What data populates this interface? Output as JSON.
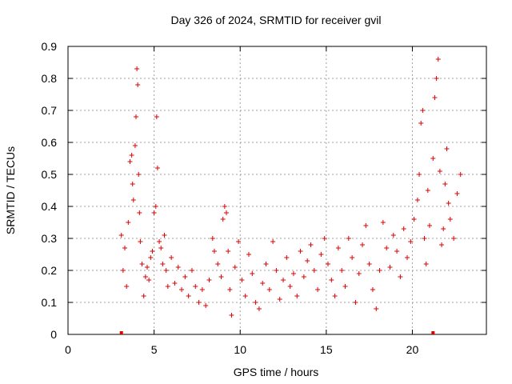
{
  "chart_data": {
    "type": "scatter",
    "title": "Day 326 of 2024, SRMTID for receiver gvil",
    "xlabel": "GPS time / hours",
    "ylabel": "SRMTID / TECUs",
    "xlim": [
      0,
      24.3
    ],
    "ylim": [
      0,
      0.9
    ],
    "xticks": [
      0,
      5,
      10,
      15,
      20
    ],
    "yticks": [
      0,
      0.1,
      0.2,
      0.3,
      0.4,
      0.5,
      0.6,
      0.7,
      0.8,
      0.9
    ],
    "grid": true,
    "marker": "+",
    "color": "#e00000",
    "series": [
      {
        "name": "SRMTID",
        "points": [
          [
            3.1,
            0.31
          ],
          [
            3.2,
            0.2
          ],
          [
            3.3,
            0.27
          ],
          [
            3.4,
            0.15
          ],
          [
            3.5,
            0.35
          ],
          [
            3.6,
            0.54
          ],
          [
            3.7,
            0.56
          ],
          [
            3.75,
            0.47
          ],
          [
            3.8,
            0.42
          ],
          [
            3.9,
            0.59
          ],
          [
            3.95,
            0.68
          ],
          [
            4.0,
            0.83
          ],
          [
            4.05,
            0.78
          ],
          [
            4.1,
            0.5
          ],
          [
            4.15,
            0.38
          ],
          [
            4.2,
            0.29
          ],
          [
            4.3,
            0.22
          ],
          [
            4.4,
            0.12
          ],
          [
            4.5,
            0.18
          ],
          [
            4.6,
            0.21
          ],
          [
            4.7,
            0.17
          ],
          [
            4.8,
            0.24
          ],
          [
            4.9,
            0.26
          ],
          [
            5.0,
            0.38
          ],
          [
            5.1,
            0.4
          ],
          [
            5.15,
            0.68
          ],
          [
            5.2,
            0.52
          ],
          [
            5.3,
            0.29
          ],
          [
            5.4,
            0.27
          ],
          [
            5.5,
            0.22
          ],
          [
            5.6,
            0.31
          ],
          [
            5.7,
            0.2
          ],
          [
            5.8,
            0.15
          ],
          [
            6.0,
            0.24
          ],
          [
            6.2,
            0.16
          ],
          [
            6.4,
            0.21
          ],
          [
            6.6,
            0.14
          ],
          [
            6.8,
            0.18
          ],
          [
            7.0,
            0.12
          ],
          [
            7.2,
            0.2
          ],
          [
            7.4,
            0.15
          ],
          [
            7.6,
            0.1
          ],
          [
            7.8,
            0.14
          ],
          [
            8.0,
            0.09
          ],
          [
            8.2,
            0.17
          ],
          [
            8.4,
            0.3
          ],
          [
            8.5,
            0.26
          ],
          [
            8.7,
            0.22
          ],
          [
            8.9,
            0.18
          ],
          [
            9.0,
            0.36
          ],
          [
            9.1,
            0.4
          ],
          [
            9.2,
            0.38
          ],
          [
            9.3,
            0.26
          ],
          [
            9.4,
            0.14
          ],
          [
            9.5,
            0.06
          ],
          [
            9.7,
            0.21
          ],
          [
            9.9,
            0.29
          ],
          [
            10.1,
            0.17
          ],
          [
            10.3,
            0.12
          ],
          [
            10.5,
            0.25
          ],
          [
            10.7,
            0.19
          ],
          [
            10.9,
            0.1
          ],
          [
            11.1,
            0.08
          ],
          [
            11.3,
            0.16
          ],
          [
            11.5,
            0.22
          ],
          [
            11.7,
            0.14
          ],
          [
            11.9,
            0.29
          ],
          [
            12.1,
            0.2
          ],
          [
            12.3,
            0.11
          ],
          [
            12.5,
            0.17
          ],
          [
            12.7,
            0.24
          ],
          [
            12.9,
            0.15
          ],
          [
            13.1,
            0.19
          ],
          [
            13.3,
            0.12
          ],
          [
            13.5,
            0.26
          ],
          [
            13.7,
            0.18
          ],
          [
            13.9,
            0.23
          ],
          [
            14.1,
            0.28
          ],
          [
            14.3,
            0.2
          ],
          [
            14.5,
            0.14
          ],
          [
            14.7,
            0.25
          ],
          [
            14.9,
            0.3
          ],
          [
            15.1,
            0.22
          ],
          [
            15.3,
            0.17
          ],
          [
            15.5,
            0.12
          ],
          [
            15.7,
            0.27
          ],
          [
            15.9,
            0.2
          ],
          [
            16.1,
            0.15
          ],
          [
            16.3,
            0.3
          ],
          [
            16.5,
            0.24
          ],
          [
            16.7,
            0.1
          ],
          [
            16.9,
            0.19
          ],
          [
            17.1,
            0.28
          ],
          [
            17.3,
            0.34
          ],
          [
            17.5,
            0.22
          ],
          [
            17.7,
            0.14
          ],
          [
            17.9,
            0.08
          ],
          [
            18.1,
            0.2
          ],
          [
            18.3,
            0.35
          ],
          [
            18.5,
            0.27
          ],
          [
            18.7,
            0.21
          ],
          [
            18.9,
            0.31
          ],
          [
            19.1,
            0.26
          ],
          [
            19.3,
            0.18
          ],
          [
            19.5,
            0.33
          ],
          [
            19.7,
            0.24
          ],
          [
            19.9,
            0.29
          ],
          [
            20.1,
            0.36
          ],
          [
            20.3,
            0.42
          ],
          [
            20.4,
            0.5
          ],
          [
            20.5,
            0.66
          ],
          [
            20.6,
            0.7
          ],
          [
            20.7,
            0.3
          ],
          [
            20.8,
            0.22
          ],
          [
            20.9,
            0.45
          ],
          [
            21.0,
            0.34
          ],
          [
            21.2,
            0.55
          ],
          [
            21.3,
            0.74
          ],
          [
            21.4,
            0.8
          ],
          [
            21.5,
            0.86
          ],
          [
            21.6,
            0.51
          ],
          [
            21.7,
            0.28
          ],
          [
            21.8,
            0.33
          ],
          [
            21.9,
            0.47
          ],
          [
            22.0,
            0.58
          ],
          [
            22.1,
            0.41
          ],
          [
            22.2,
            0.36
          ],
          [
            22.4,
            0.3
          ],
          [
            22.6,
            0.44
          ],
          [
            22.8,
            0.5
          ]
        ]
      }
    ],
    "markers_on_axis": [
      3.1,
      21.2
    ]
  }
}
